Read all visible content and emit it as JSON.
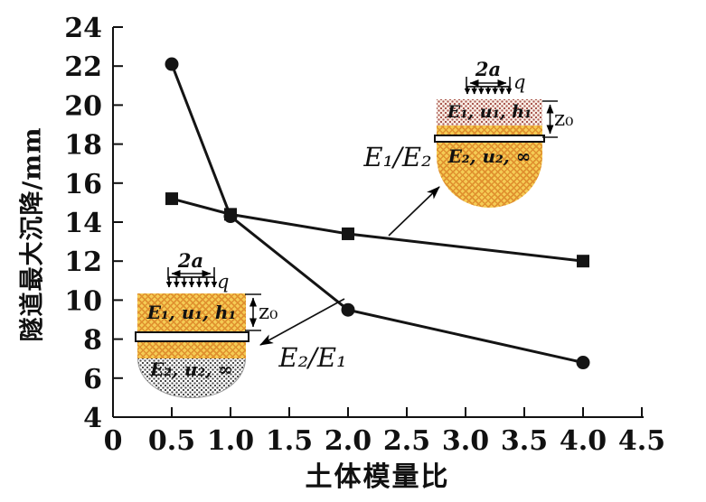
{
  "chart_data": {
    "type": "line",
    "title": "",
    "xlabel": "土体模量比",
    "ylabel": "隧道最大沉降/mm",
    "xlim": [
      0,
      4.5
    ],
    "ylim": [
      4,
      24
    ],
    "xticks": [
      "0",
      "0.5",
      "1.0",
      "1.5",
      "2.0",
      "2.5",
      "3.0",
      "3.5",
      "4.0",
      "4.5"
    ],
    "yticks": [
      "4",
      "6",
      "8",
      "10",
      "12",
      "14",
      "16",
      "18",
      "20",
      "22",
      "24"
    ],
    "grid": false,
    "legend_position": "annotated-arrows",
    "x": [
      0.5,
      1.0,
      2.0,
      4.0
    ],
    "series": [
      {
        "name": "E₁/E₂",
        "marker": "square",
        "values": [
          15.2,
          14.4,
          13.4,
          12.0
        ]
      },
      {
        "name": "E₂/E₁",
        "marker": "circle",
        "values": [
          22.1,
          14.3,
          9.5,
          6.8
        ]
      }
    ]
  },
  "insets": {
    "upper_right": {
      "curve_label": "E₁/E₂",
      "load_width_label": "2a",
      "load_label": "q",
      "top_layer_label": "E₁, u₁, h₁",
      "bottom_layer_label": "E₂, u₂, ∞",
      "depth_label": "z₀"
    },
    "lower_left": {
      "curve_label": "E₂/E₁",
      "load_width_label": "2a",
      "load_label": "q",
      "top_layer_label": "E₁, u₁, h₁",
      "bottom_layer_label": "E₂, u₂, ∞",
      "depth_label": "z₀"
    }
  },
  "colors": {
    "line": "#141414",
    "soil_yellow": "#f5cc55",
    "soil_yellow_hatch": "#e0912f",
    "upper_dot_bg": "#faf0e8",
    "upper_dot": "#a8564e",
    "lower_dot_bg": "#ffffff",
    "lower_dot": "#4a4a4a",
    "tunnel_fill": "#ffffff"
  }
}
